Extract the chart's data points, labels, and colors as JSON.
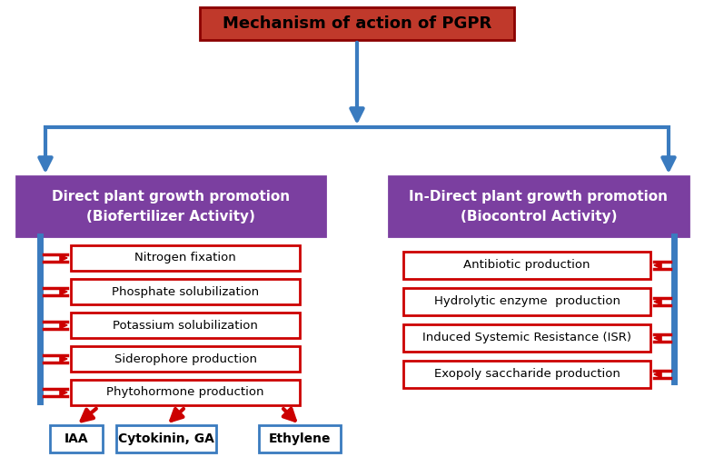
{
  "title": "Mechanism of action of PGPR",
  "title_bg": "#c0392b",
  "title_border": "#8B0000",
  "blue": "#3a7bbf",
  "red": "#cc0000",
  "purple": "#7b3fa0",
  "white": "#ffffff",
  "black": "#000000",
  "background": "#ffffff",
  "direct_line1": "Direct plant growth promotion",
  "direct_line2": "(Biofertilizer Activity)",
  "indirect_line1": "In-Direct plant growth promotion",
  "indirect_line2": "(Biocontrol Activity)",
  "direct_items": [
    "Nitrogen fixation",
    "Phosphate solubilization",
    "Potassium solubilization",
    "Siderophore production",
    "Phytohormone production"
  ],
  "indirect_items": [
    "Antibiotic production",
    "Hydrolytic enzyme  production",
    "Induced Systemic Resistance (ISR)",
    "Exopoly saccharide production"
  ],
  "sub_items": [
    "IAA",
    "Cytokinin, GA",
    "Ethylene"
  ]
}
